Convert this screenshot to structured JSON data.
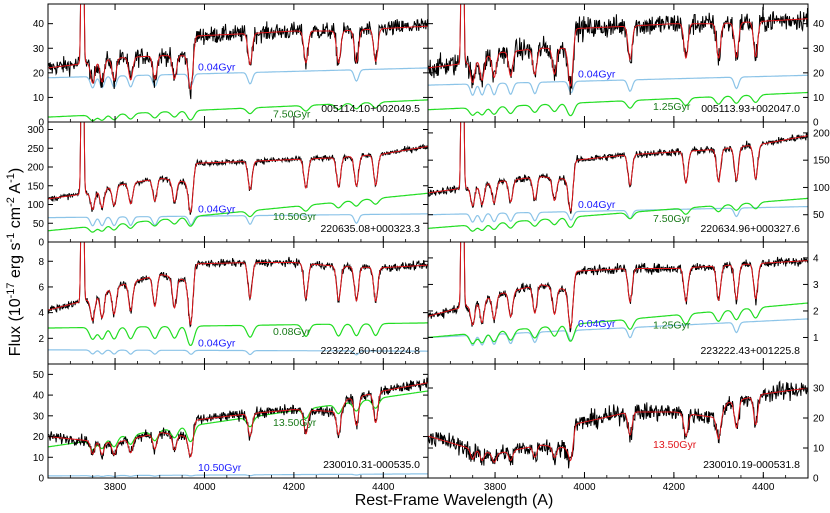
{
  "figure": {
    "xlabel": "Rest-Frame Wavelength (A)",
    "ylabel_main": "Flux (10",
    "ylabel_exp1": "-17",
    "ylabel_mid": " erg s",
    "ylabel_exp2": "-1",
    "ylabel_mid2": " cm",
    "ylabel_exp3": "-2",
    "ylabel_mid3": " A",
    "ylabel_exp4": "-1",
    "ylabel_end": ")",
    "xticks": [
      3800,
      4000,
      4200,
      4400
    ],
    "xlim": [
      3650,
      4500
    ]
  },
  "colors": {
    "observed": "#000000",
    "fit": "#e0161b",
    "young": "#8cc4e8",
    "old": "#22dd22",
    "young_label": "#1a1aff",
    "old_label": "#1a7a1a",
    "fit_label": "#e0161b"
  },
  "chart_data": [
    {
      "type": "line",
      "id": "005114.10+002049.5",
      "name": "005114.10+002049.5",
      "ylim": [
        0,
        48
      ],
      "yticks": [
        0,
        10,
        20,
        30,
        40
      ],
      "yaxis_side": "left",
      "young_age": "0.04Gyr",
      "old_age": "7.50Gyr",
      "single_age": "",
      "cont": {
        "x": [
          3650,
          3740,
          3800,
          3900,
          3960,
          3980,
          4100,
          4200,
          4300,
          4400,
          4500
        ],
        "y": [
          22,
          24,
          26,
          27,
          27,
          35,
          36,
          37,
          37,
          38,
          39
        ]
      },
      "young": {
        "base": [
          18,
          22
        ],
        "depth": 6
      },
      "old": {
        "base": [
          2,
          9
        ],
        "depth": 3
      },
      "noise": 3.5,
      "emission": true
    },
    {
      "type": "line",
      "id": "005113.93+002047.0",
      "name": "005113.93+002047.0",
      "ylim": [
        0,
        48
      ],
      "yticks": [
        0,
        10,
        20,
        30,
        40
      ],
      "yaxis_side": "right",
      "young_age": "0.04Gyr",
      "old_age": "1.25Gyr",
      "single_age": "",
      "cont": {
        "x": [
          3650,
          3740,
          3800,
          3900,
          3960,
          3980,
          4100,
          4200,
          4300,
          4400,
          4500
        ],
        "y": [
          22,
          24,
          28,
          30,
          30,
          38,
          39,
          40,
          40,
          41,
          42
        ]
      },
      "young": {
        "base": [
          15,
          19
        ],
        "depth": 6
      },
      "old": {
        "base": [
          5,
          12
        ],
        "depth": 4
      },
      "noise": 4.5,
      "emission": true
    },
    {
      "type": "line",
      "id": "220635.08+000323.3",
      "name": "220635.08+000323.3",
      "ylim": [
        0,
        320
      ],
      "yticks": [
        0,
        50,
        100,
        150,
        200,
        250,
        300
      ],
      "yaxis_side": "left",
      "young_age": "0.04Gyr",
      "old_age": "10.50Gyr",
      "single_age": "",
      "cont": {
        "x": [
          3650,
          3740,
          3800,
          3900,
          3960,
          3980,
          4100,
          4200,
          4300,
          4400,
          4500
        ],
        "y": [
          115,
          130,
          150,
          170,
          160,
          210,
          215,
          220,
          225,
          235,
          255
        ]
      },
      "young": {
        "base": [
          65,
          75
        ],
        "depth": 30
      },
      "old": {
        "base": [
          30,
          130
        ],
        "depth": 20
      },
      "noise": 8,
      "emission": true
    },
    {
      "type": "line",
      "id": "220634.96+000327.6",
      "name": "220634.96+000327.6",
      "ylim": [
        0,
        220
      ],
      "yticks": [
        50,
        100,
        150,
        200
      ],
      "yaxis_side": "right",
      "young_age": "0.04Gyr",
      "old_age": "7.50Gyr",
      "single_age": "",
      "cont": {
        "x": [
          3650,
          3740,
          3800,
          3900,
          3960,
          3980,
          4100,
          4200,
          4300,
          4400,
          4500
        ],
        "y": [
          90,
          100,
          110,
          120,
          115,
          150,
          160,
          165,
          170,
          180,
          195
        ]
      },
      "young": {
        "base": [
          50,
          65
        ],
        "depth": 20
      },
      "old": {
        "base": [
          25,
          80
        ],
        "depth": 15
      },
      "noise": 7,
      "emission": true
    },
    {
      "type": "line",
      "id": "223222.60+001224.8",
      "name": "223222.60+001224.8",
      "ylim": [
        0,
        9.5
      ],
      "yticks": [
        2,
        4,
        6,
        8
      ],
      "yaxis_side": "left",
      "young_age": "0.04Gyr",
      "old_age": "0.08Gyr",
      "single_age": "",
      "cont": {
        "x": [
          3650,
          3740,
          3800,
          3900,
          3960,
          3980,
          4100,
          4200,
          4300,
          4400,
          4500
        ],
        "y": [
          4.2,
          5.0,
          6.0,
          7.0,
          6.5,
          7.8,
          7.9,
          7.9,
          7.6,
          7.5,
          7.7
        ]
      },
      "young": {
        "base": [
          1.1,
          1.0
        ],
        "depth": 0.4
      },
      "old": {
        "base": [
          2.8,
          3.2
        ],
        "depth": 1.2
      },
      "noise": 0.3,
      "emission": true
    },
    {
      "type": "line",
      "id": "223222.43+001225.8",
      "name": "223222.43+001225.8",
      "ylim": [
        0,
        4.6
      ],
      "yticks": [
        1,
        2,
        3,
        4
      ],
      "yaxis_side": "right",
      "young_age": "0.04Gyr",
      "old_age": "1.25Gyr",
      "single_age": "",
      "cont": {
        "x": [
          3650,
          3740,
          3800,
          3900,
          3960,
          3980,
          4100,
          4200,
          4300,
          4400,
          4500
        ],
        "y": [
          1.8,
          2.2,
          2.6,
          3.0,
          2.8,
          3.5,
          3.6,
          3.6,
          3.7,
          3.8,
          3.9
        ]
      },
      "young": {
        "base": [
          1.0,
          1.7
        ],
        "depth": 0.5
      },
      "old": {
        "base": [
          1.0,
          2.3
        ],
        "depth": 0.5
      },
      "noise": 0.18,
      "emission": true
    },
    {
      "type": "line",
      "id": "230010.31-000535.0",
      "name": "230010.31-000535.0",
      "ylim": [
        0,
        55
      ],
      "yticks": [
        0,
        10,
        20,
        30,
        40,
        50
      ],
      "yaxis_side": "left",
      "young_age": "10.50Gyr",
      "old_age": "13.50Gyr",
      "single_age": "",
      "cont": {
        "x": [
          3650,
          3740,
          3800,
          3900,
          3960,
          3980,
          4100,
          4200,
          4300,
          4320,
          4400,
          4500
        ],
        "y": [
          20,
          18,
          17,
          22,
          20,
          28,
          31,
          33,
          32,
          38,
          42,
          46
        ]
      },
      "young": {
        "base": [
          1,
          2
        ],
        "depth": 0.5
      },
      "old": {
        "base": [
          15,
          42
        ],
        "depth": 6
      },
      "noise": 2.5,
      "emission": false
    },
    {
      "type": "line",
      "id": "230010.19-000531.8",
      "name": "230010.19-000531.8",
      "ylim": [
        0,
        38
      ],
      "yticks": [
        0,
        10,
        20,
        30
      ],
      "yaxis_side": "right",
      "young_age": "",
      "old_age": "",
      "single_age": "13.50Gyr",
      "cont": {
        "x": [
          3650,
          3740,
          3800,
          3900,
          3960,
          3980,
          4100,
          4200,
          4300,
          4320,
          4400,
          4500
        ],
        "y": [
          14,
          10,
          8,
          11,
          10,
          18,
          22,
          22,
          20,
          25,
          28,
          30
        ]
      },
      "young": null,
      "old": null,
      "noise": 3,
      "emission": false
    }
  ]
}
